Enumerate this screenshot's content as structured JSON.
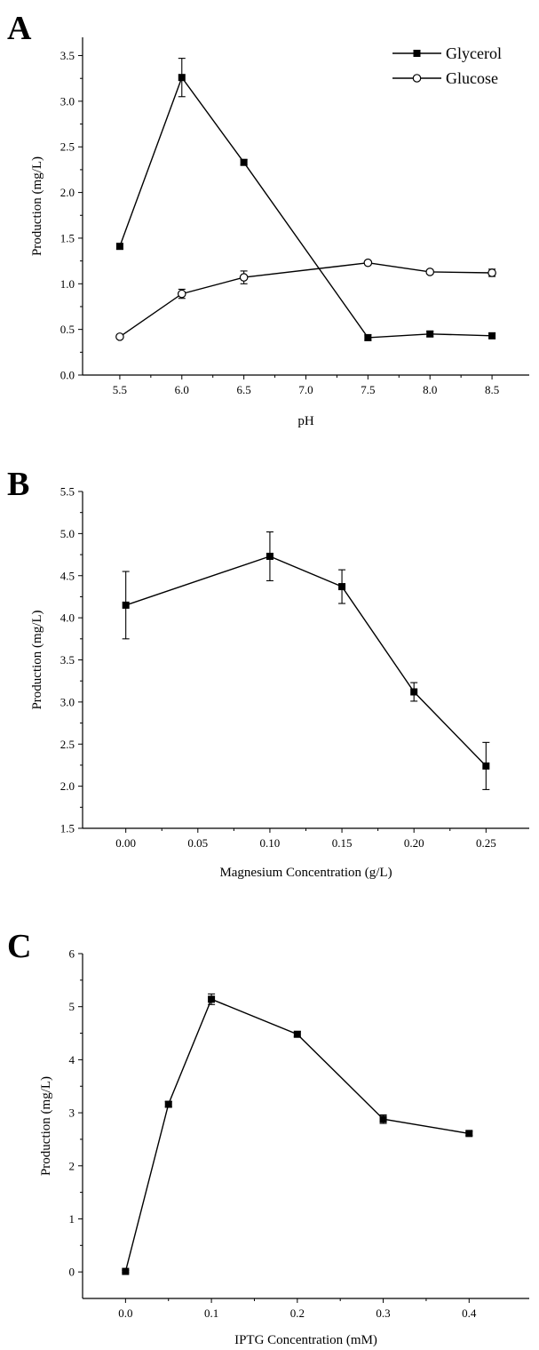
{
  "chart_data": [
    {
      "panel": "A",
      "type": "line",
      "xlabel": "pH",
      "ylabel": "Production (mg/L)",
      "xlim": [
        5.2,
        8.8
      ],
      "ylim": [
        0.0,
        3.7
      ],
      "xticks": [
        5.5,
        6.0,
        6.5,
        7.0,
        7.5,
        8.0,
        8.5
      ],
      "xtick_labels": [
        "5.5",
        "6.0",
        "6.5",
        "7.0",
        "7.5",
        "8.0",
        "8.5"
      ],
      "yticks": [
        0.0,
        0.5,
        1.0,
        1.5,
        2.0,
        2.5,
        3.0,
        3.5
      ],
      "ytick_labels": [
        "0.0",
        "0.5",
        "1.0",
        "1.5",
        "2.0",
        "2.5",
        "3.0",
        "3.5"
      ],
      "legend": "top-right",
      "grid": false,
      "series": [
        {
          "name": "Glycerol",
          "marker": "filled-square",
          "x": [
            5.5,
            6.0,
            6.5,
            7.5,
            8.0,
            8.5
          ],
          "y": [
            1.41,
            3.26,
            2.33,
            0.41,
            0.45,
            0.43
          ],
          "err": [
            0.03,
            0.21,
            0.03,
            0.03,
            0.03,
            0.03
          ]
        },
        {
          "name": "Glucose",
          "marker": "open-circle",
          "x": [
            5.5,
            6.0,
            6.5,
            7.5,
            8.0,
            8.5
          ],
          "y": [
            0.42,
            0.89,
            1.07,
            1.23,
            1.13,
            1.12
          ],
          "err": [
            0.02,
            0.05,
            0.07,
            0.02,
            0.02,
            0.04
          ]
        }
      ]
    },
    {
      "panel": "B",
      "type": "line",
      "xlabel": "Magnesium Concentration (g/L)",
      "ylabel": "Production (mg/L)",
      "xlim": [
        -0.03,
        0.28
      ],
      "ylim": [
        1.5,
        5.5
      ],
      "xticks": [
        0.0,
        0.05,
        0.1,
        0.15,
        0.2,
        0.25
      ],
      "xtick_labels": [
        "0.00",
        "0.05",
        "0.10",
        "0.15",
        "0.20",
        "0.25"
      ],
      "yticks": [
        1.5,
        2.0,
        2.5,
        3.0,
        3.5,
        4.0,
        4.5,
        5.0,
        5.5
      ],
      "ytick_labels": [
        "1.5",
        "2.0",
        "2.5",
        "3.0",
        "3.5",
        "4.0",
        "4.5",
        "5.0",
        "5.5"
      ],
      "grid": false,
      "series": [
        {
          "marker": "filled-square",
          "x": [
            0.0,
            0.1,
            0.15,
            0.2,
            0.25
          ],
          "y": [
            4.15,
            4.73,
            4.37,
            3.12,
            2.24
          ],
          "err": [
            0.4,
            0.29,
            0.2,
            0.11,
            0.28
          ]
        }
      ]
    },
    {
      "panel": "C",
      "type": "line",
      "xlabel": "IPTG Concentration (mM)",
      "ylabel": "Production (mg/L)",
      "xlim": [
        -0.05,
        0.47
      ],
      "ylim": [
        -0.5,
        6.0
      ],
      "xticks": [
        0.0,
        0.1,
        0.2,
        0.3,
        0.4
      ],
      "xtick_labels": [
        "0.0",
        "0.1",
        "0.2",
        "0.3",
        "0.4"
      ],
      "yticks": [
        0,
        1,
        2,
        3,
        4,
        5,
        6
      ],
      "ytick_labels": [
        "0",
        "1",
        "2",
        "3",
        "4",
        "5",
        "6"
      ],
      "grid": false,
      "series": [
        {
          "marker": "filled-square",
          "x": [
            0.0,
            0.05,
            0.1,
            0.2,
            0.3,
            0.4
          ],
          "y": [
            0.01,
            3.16,
            5.14,
            4.48,
            2.88,
            2.61
          ],
          "err": [
            0.02,
            0.05,
            0.1,
            0.05,
            0.08,
            0.04
          ]
        }
      ]
    }
  ]
}
